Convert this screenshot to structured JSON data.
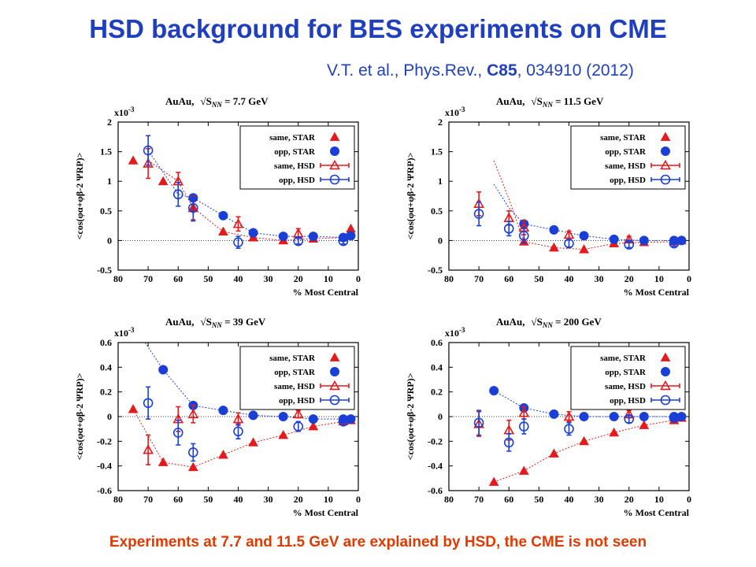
{
  "colors": {
    "title": "#1f3fbf",
    "footer": "#e03a00",
    "star_same": "#e41a1c",
    "star_opp": "#1a3fd6",
    "hsd_same": "#e41a1c",
    "hsd_opp": "#1a3fd6",
    "citation": "#1f3fbf"
  },
  "title": "HSD background for BES experiments on CME",
  "citation": {
    "prefix": "V.T. et al., Phys.Rev., ",
    "volume": "C85",
    "suffix": ", 034910 (2012)"
  },
  "footer": "Experiments at 7.7 and 11.5 GeV  are explained by HSD, the CME is not seen",
  "chart_data": [
    {
      "type": "scatter",
      "title": "AuAu,  √S_NN = 7.7 GeV",
      "title_parts": {
        "system": "AuAu,",
        "energy": " = 7.7 GeV"
      },
      "xlabel": "% Most Central",
      "ylabel": "<cos(φα+φβ-2 ΨRP)>",
      "scale_label": "x10-3",
      "xlim": [
        80,
        0
      ],
      "ylim": [
        -0.5,
        2
      ],
      "xticks": [
        "80",
        "70",
        "60",
        "50",
        "40",
        "30",
        "20",
        "10",
        "0"
      ],
      "yticks": [
        "-0.5",
        "0",
        "0.5",
        "1",
        "1.5",
        "2"
      ],
      "legend": [
        "same, STAR",
        "opp, STAR",
        "same, HSD",
        "opp, HSD"
      ],
      "legend_position": "top-right",
      "series": [
        {
          "name": "same, STAR",
          "marker": "filled-triangle",
          "x": [
            75,
            65,
            55,
            45,
            35,
            25,
            15,
            5,
            2.5
          ],
          "y": [
            1.35,
            1.0,
            0.55,
            0.15,
            0.05,
            0.0,
            0.03,
            0.05,
            0.2
          ]
        },
        {
          "name": "opp, STAR",
          "marker": "filled-circle",
          "x": [
            55,
            45,
            35,
            25,
            15,
            5,
            2.5
          ],
          "y": [
            0.72,
            0.42,
            0.13,
            0.07,
            0.07,
            0.05,
            0.08
          ]
        },
        {
          "name": "same, HSD",
          "marker": "open-triangle",
          "x": [
            70,
            60,
            55,
            40,
            20
          ],
          "y": [
            1.3,
            1.0,
            0.55,
            0.28,
            0.12
          ],
          "err": [
            0.25,
            0.15,
            0.2,
            0.12,
            0.08
          ]
        },
        {
          "name": "opp, HSD",
          "marker": "open-circle",
          "x": [
            70,
            60,
            55,
            40,
            20,
            5
          ],
          "y": [
            1.52,
            0.78,
            0.55,
            -0.03,
            -0.01,
            -0.01
          ],
          "err": [
            0.25,
            0.2,
            0.22,
            0.1,
            0.05,
            0.05
          ]
        }
      ],
      "dashed_same": {
        "x": [
          70,
          60,
          55,
          45,
          35,
          25,
          15,
          5,
          2.5
        ],
        "y": [
          1.35,
          1.0,
          0.55,
          0.15,
          0.05,
          0.0,
          0.03,
          0.05,
          0.2
        ]
      },
      "dashed_opp": {
        "x": [
          70,
          60,
          55,
          45,
          35,
          25,
          15,
          5,
          2.5
        ],
        "y": [
          1.52,
          0.78,
          0.72,
          0.42,
          0.13,
          0.07,
          0.07,
          0.05,
          0.08
        ]
      }
    },
    {
      "type": "scatter",
      "title": "AuAu,  √S_NN = 11.5 GeV",
      "title_parts": {
        "system": "AuAu,",
        "energy": " = 11.5 GeV"
      },
      "xlabel": "% Most Central",
      "ylabel": "<cos(φα+φβ-2 ΨRP)>",
      "scale_label": "x10-3",
      "xlim": [
        80,
        0
      ],
      "ylim": [
        -0.5,
        2
      ],
      "xticks": [
        "80",
        "70",
        "60",
        "50",
        "40",
        "30",
        "20",
        "10",
        "0"
      ],
      "yticks": [
        "-0.5",
        "0",
        "0.5",
        "1",
        "1.5",
        "2"
      ],
      "legend": [
        "same, STAR",
        "opp, STAR",
        "same, HSD",
        "opp, HSD"
      ],
      "legend_position": "top-right",
      "series": [
        {
          "name": "same, STAR",
          "marker": "filled-triangle",
          "x": [
            55,
            45,
            35,
            25,
            15,
            5,
            2.5
          ],
          "y": [
            -0.02,
            -0.12,
            -0.15,
            -0.05,
            -0.03,
            -0.02,
            0.0
          ]
        },
        {
          "name": "opp, STAR",
          "marker": "filled-circle",
          "x": [
            55,
            45,
            35,
            25,
            15,
            5,
            2.5
          ],
          "y": [
            0.28,
            0.18,
            0.08,
            0.02,
            0.0,
            0.0,
            0.0
          ]
        },
        {
          "name": "same, HSD",
          "marker": "open-triangle",
          "x": [
            70,
            60,
            55,
            40,
            20
          ],
          "y": [
            0.62,
            0.38,
            0.22,
            0.1,
            0.02
          ],
          "err": [
            0.2,
            0.12,
            0.12,
            0.06,
            0.05
          ]
        },
        {
          "name": "opp, HSD",
          "marker": "open-circle",
          "x": [
            70,
            60,
            55,
            40,
            20,
            5
          ],
          "y": [
            0.45,
            0.2,
            0.08,
            -0.05,
            -0.07,
            -0.05
          ],
          "err": [
            0.2,
            0.12,
            0.12,
            0.06,
            0.05,
            0.05
          ]
        }
      ],
      "dashed_same": {
        "x": [
          65,
          60,
          55,
          45,
          35,
          25,
          15,
          5,
          2.5
        ],
        "y": [
          1.35,
          0.7,
          -0.02,
          -0.12,
          -0.15,
          -0.05,
          -0.03,
          -0.02,
          0.0
        ]
      },
      "dashed_opp": {
        "x": [
          65,
          60,
          55,
          45,
          35,
          25,
          15,
          5,
          2.5
        ],
        "y": [
          0.95,
          0.55,
          0.28,
          0.18,
          0.08,
          0.02,
          0.0,
          0.0,
          0.0
        ]
      }
    },
    {
      "type": "scatter",
      "title": "AuAu,  √S_NN = 39 GeV",
      "title_parts": {
        "system": "AuAu,",
        "energy": " = 39 GeV"
      },
      "xlabel": "% Most Central",
      "ylabel": "<cos(φα+φβ-2 ΨRP)>",
      "scale_label": "x10-3",
      "xlim": [
        80,
        0
      ],
      "ylim": [
        -0.6,
        0.6
      ],
      "xticks": [
        "80",
        "70",
        "60",
        "50",
        "40",
        "30",
        "20",
        "10",
        "0"
      ],
      "yticks": [
        "-0.6",
        "-0.4",
        "-0.2",
        "0",
        "0.2",
        "0.4",
        "0.6"
      ],
      "legend": [
        "same, STAR",
        "opp, STAR",
        "same, HSD",
        "opp, HSD"
      ],
      "legend_position": "top-right",
      "series": [
        {
          "name": "same, STAR",
          "marker": "filled-triangle",
          "x": [
            75,
            65,
            55,
            45,
            35,
            25,
            15,
            5,
            2.5
          ],
          "y": [
            0.06,
            -0.37,
            -0.41,
            -0.31,
            -0.21,
            -0.15,
            -0.08,
            -0.04,
            -0.03
          ]
        },
        {
          "name": "opp, STAR",
          "marker": "filled-circle",
          "x": [
            65,
            55,
            45,
            35,
            25,
            15,
            5,
            2.5
          ],
          "y": [
            0.38,
            0.09,
            0.05,
            0.01,
            0.0,
            -0.02,
            -0.02,
            -0.02
          ]
        },
        {
          "name": "same, HSD",
          "marker": "open-triangle",
          "x": [
            70,
            60,
            55,
            40,
            20
          ],
          "y": [
            -0.27,
            -0.02,
            0.02,
            -0.02,
            0.02
          ],
          "err": [
            0.12,
            0.1,
            0.07,
            0.05,
            0.03
          ]
        },
        {
          "name": "opp, HSD",
          "marker": "open-circle",
          "x": [
            70,
            60,
            55,
            40,
            20,
            5
          ],
          "y": [
            0.11,
            -0.13,
            -0.29,
            -0.12,
            -0.08,
            -0.04
          ],
          "err": [
            0.13,
            0.1,
            0.07,
            0.06,
            0.04,
            0.03
          ]
        }
      ],
      "dashed_same": {
        "x": [
          75,
          65,
          55,
          45,
          35,
          25,
          15,
          5,
          2.5
        ],
        "y": [
          0.06,
          -0.37,
          -0.41,
          -0.31,
          -0.21,
          -0.15,
          -0.08,
          -0.04,
          -0.03
        ]
      },
      "dashed_opp": {
        "x": [
          71,
          65,
          55,
          45,
          35,
          25,
          15,
          5,
          2.5
        ],
        "y": [
          0.6,
          0.38,
          0.09,
          0.05,
          0.01,
          0.0,
          -0.02,
          -0.02,
          -0.02
        ]
      }
    },
    {
      "type": "scatter",
      "title": "AuAu,  √S_NN = 200 GeV",
      "title_parts": {
        "system": "AuAu,",
        "energy": " = 200 GeV"
      },
      "xlabel": "% Most Central",
      "ylabel": "<cos(φα+φβ-2 ΨRP)>",
      "scale_label": "x10-3",
      "xlim": [
        80,
        0
      ],
      "ylim": [
        -0.6,
        0.6
      ],
      "xticks": [
        "80",
        "70",
        "60",
        "50",
        "40",
        "30",
        "20",
        "10",
        "0"
      ],
      "yticks": [
        "-0.6",
        "-0.4",
        "-0.2",
        "0",
        "0.2",
        "0.4",
        "0.6"
      ],
      "legend": [
        "same, STAR",
        "opp, STAR",
        "same, HSD",
        "opp, HSD"
      ],
      "legend_position": "top-right",
      "series": [
        {
          "name": "same, STAR",
          "marker": "filled-triangle",
          "x": [
            65,
            55,
            45,
            35,
            25,
            15,
            5,
            2.5
          ],
          "y": [
            -0.53,
            -0.44,
            -0.3,
            -0.2,
            -0.13,
            -0.07,
            -0.03,
            -0.01
          ]
        },
        {
          "name": "opp, STAR",
          "marker": "filled-circle",
          "x": [
            65,
            55,
            45,
            35,
            25,
            15,
            5,
            2.5
          ],
          "y": [
            0.21,
            0.07,
            0.02,
            0.0,
            0.0,
            0.0,
            0.0,
            0.0
          ]
        },
        {
          "name": "same, HSD",
          "marker": "open-triangle",
          "x": [
            70,
            60,
            55,
            40,
            20
          ],
          "y": [
            -0.06,
            -0.11,
            0.03,
            0.0,
            0.02
          ],
          "err": [
            0.1,
            0.08,
            0.05,
            0.04,
            0.03
          ]
        },
        {
          "name": "opp, HSD",
          "marker": "open-circle",
          "x": [
            70,
            60,
            55,
            40,
            20,
            5
          ],
          "y": [
            -0.05,
            -0.21,
            -0.08,
            -0.1,
            -0.02,
            -0.01
          ],
          "err": [
            0.1,
            0.07,
            0.06,
            0.05,
            0.03,
            0.02
          ]
        }
      ],
      "dashed_same": {
        "x": [
          65,
          55,
          45,
          35,
          25,
          15,
          5,
          2.5
        ],
        "y": [
          -0.53,
          -0.44,
          -0.3,
          -0.2,
          -0.13,
          -0.07,
          -0.03,
          -0.01
        ]
      },
      "dashed_opp": {
        "x": [
          65,
          55,
          45,
          35,
          25,
          15,
          5,
          2.5
        ],
        "y": [
          0.21,
          0.07,
          0.02,
          0.0,
          0.0,
          0.0,
          0.0,
          0.0
        ]
      }
    }
  ]
}
